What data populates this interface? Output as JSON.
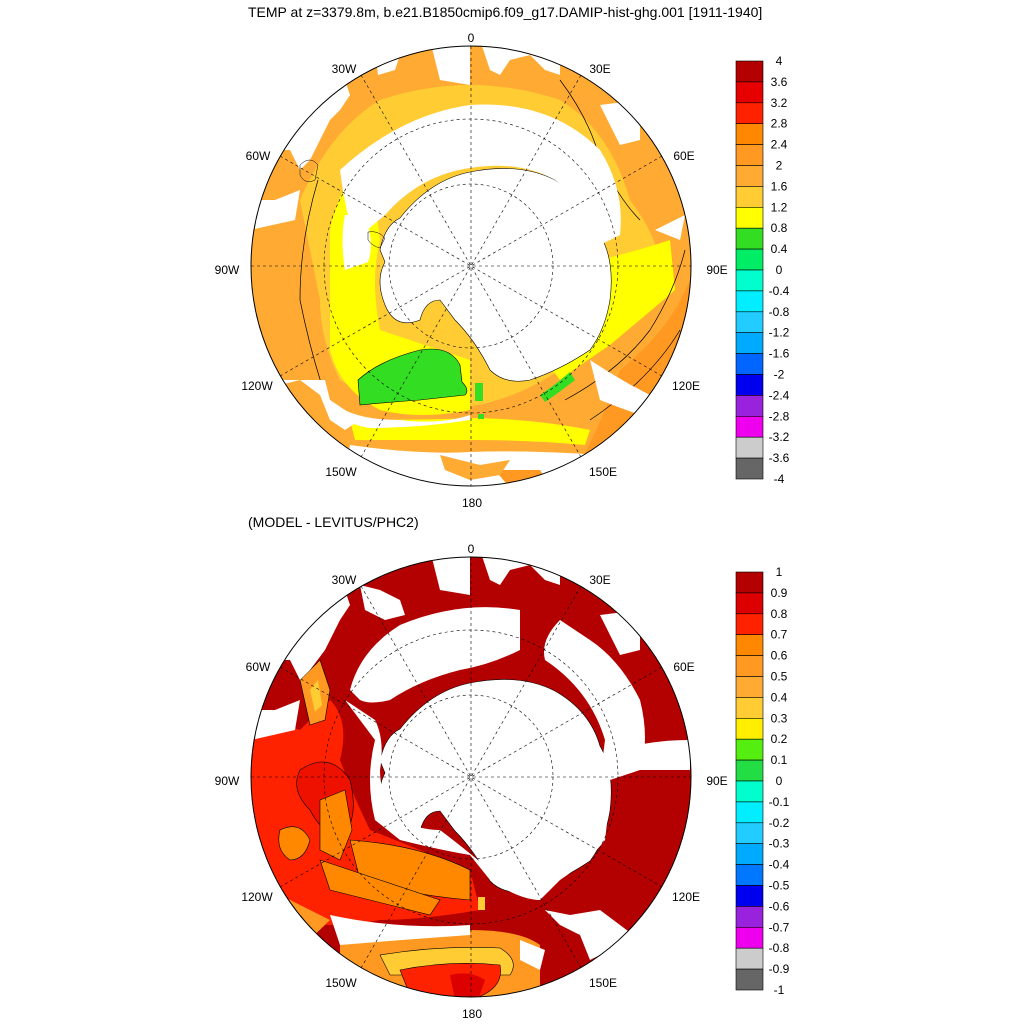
{
  "header": {
    "title": "TEMP at z=3379.8m, b.e21.B1850cmip6.f09_g17.DAMIP-hist-ghg.001 [1911-1940]",
    "subtitle": "(MODEL - LEVITUS/PHC2)"
  },
  "maps": [
    {
      "projection": "south-polar-stereographic",
      "lon_labels": [
        "0",
        "30E",
        "60E",
        "90E",
        "120E",
        "150E",
        "180",
        "150W",
        "120W",
        "90W",
        "60W",
        "30W"
      ],
      "colorbar": {
        "labels": [
          "4",
          "3.6",
          "3.2",
          "2.8",
          "2.4",
          "2",
          "1.6",
          "1.2",
          "0.8",
          "0.4",
          "0",
          "-0.4",
          "-0.8",
          "-1.2",
          "-1.6",
          "-2",
          "-2.4",
          "-2.8",
          "-3.2",
          "-3.6",
          "-4"
        ],
        "colors": [
          "#b30000",
          "#e60000",
          "#ff2200",
          "#ff8800",
          "#ff9922",
          "#ffaa33",
          "#ffcc33",
          "#ffff00",
          "#33dd22",
          "#00ee66",
          "#00ffcc",
          "#00eeff",
          "#22ccff",
          "#00aaff",
          "#0066ff",
          "#0000ee",
          "#9922dd",
          "#ee00ee",
          "#cccccc",
          "#666666"
        ]
      }
    },
    {
      "projection": "south-polar-stereographic",
      "lon_labels": [
        "0",
        "30E",
        "60E",
        "90E",
        "120E",
        "150E",
        "180",
        "150W",
        "120W",
        "90W",
        "60W",
        "30W"
      ],
      "colorbar": {
        "labels": [
          "1",
          "0.9",
          "0.8",
          "0.7",
          "0.6",
          "0.5",
          "0.4",
          "0.3",
          "0.2",
          "0.1",
          "0",
          "-0.1",
          "-0.2",
          "-0.3",
          "-0.4",
          "-0.5",
          "-0.6",
          "-0.7",
          "-0.8",
          "-0.9",
          "-1"
        ],
        "colors": [
          "#b30000",
          "#dd0000",
          "#ff2200",
          "#ff8800",
          "#ff9922",
          "#ffaa33",
          "#ffcc33",
          "#ffee00",
          "#55ee11",
          "#22dd44",
          "#00ffcc",
          "#00eeff",
          "#22ccff",
          "#00aaff",
          "#0077ff",
          "#0000ee",
          "#9922dd",
          "#ee00ee",
          "#cccccc",
          "#666666"
        ]
      }
    }
  ]
}
